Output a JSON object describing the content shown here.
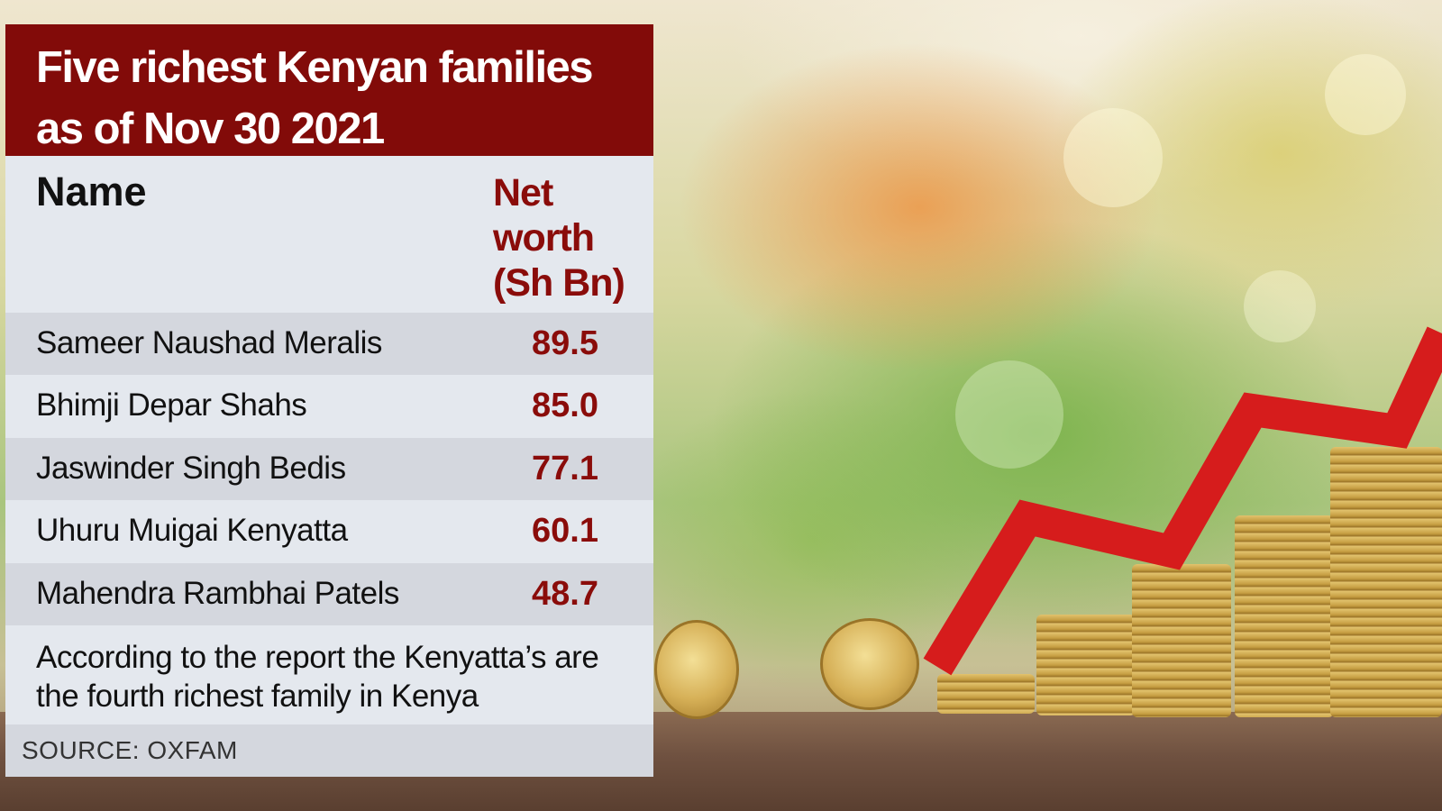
{
  "chart_data": {
    "type": "table",
    "title": "Five richest Kenyan families as of Nov 30 2021",
    "columns": [
      "Name",
      "Net worth (Sh Bn)"
    ],
    "rows": [
      {
        "name": "Sameer Naushad Meralis",
        "value": "89.5"
      },
      {
        "name": "Bhimji Depar Shahs",
        "value": "85.0"
      },
      {
        "name": "Jaswinder Singh Bedis",
        "value": "77.1"
      },
      {
        "name": "Uhuru Muigai Kenyatta",
        "value": "60.1"
      },
      {
        "name": "Mahendra Rambhai Patels",
        "value": "48.7"
      }
    ],
    "note": "According to the report the Kenyatta’s are the fourth richest family in Kenya",
    "source": "SOURCE:  OXFAM"
  },
  "colors": {
    "title_background": "#820b09",
    "value_text": "#8a0c0a",
    "row_light": "#e4e8ee",
    "row_dark": "#d4d7de"
  }
}
